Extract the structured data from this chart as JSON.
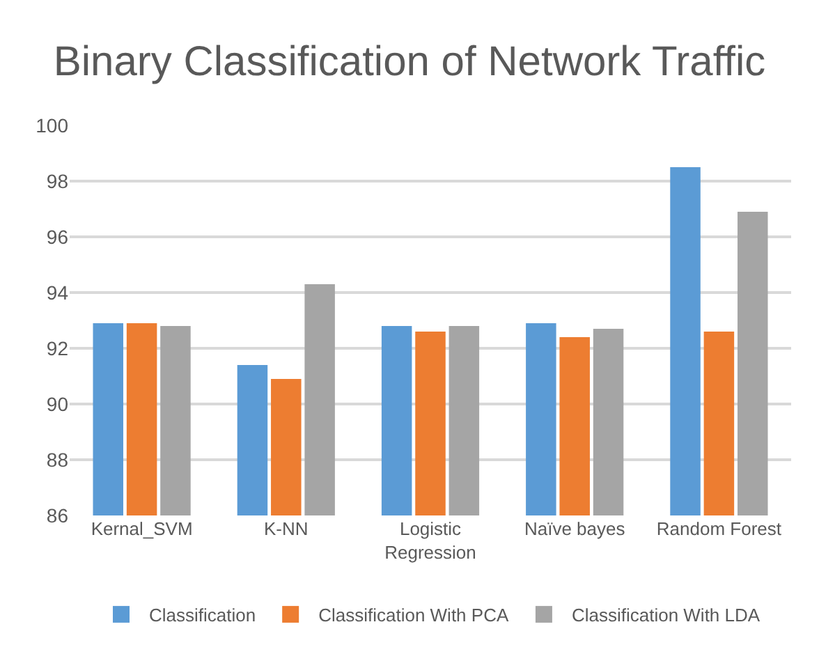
{
  "chart_data": {
    "type": "bar",
    "title": "Binary Classification of Network Traffic",
    "categories": [
      "Kernal_SVM",
      "K-NN",
      "Logistic Regression",
      "Naïve bayes",
      "Random Forest"
    ],
    "series": [
      {
        "name": "Classification",
        "color": "#5b9bd5",
        "values": [
          92.9,
          91.4,
          92.8,
          92.9,
          98.5
        ]
      },
      {
        "name": "Classification With PCA",
        "color": "#ed7d31",
        "values": [
          92.9,
          90.9,
          92.6,
          92.4,
          92.6
        ]
      },
      {
        "name": "Classification With LDA",
        "color": "#a5a5a5",
        "values": [
          92.8,
          94.3,
          92.8,
          92.7,
          96.9
        ]
      }
    ],
    "ylim": [
      86,
      100
    ],
    "yticks": [
      86,
      88,
      90,
      92,
      94,
      96,
      98,
      100
    ],
    "grid": "y",
    "legend": "bottom"
  }
}
